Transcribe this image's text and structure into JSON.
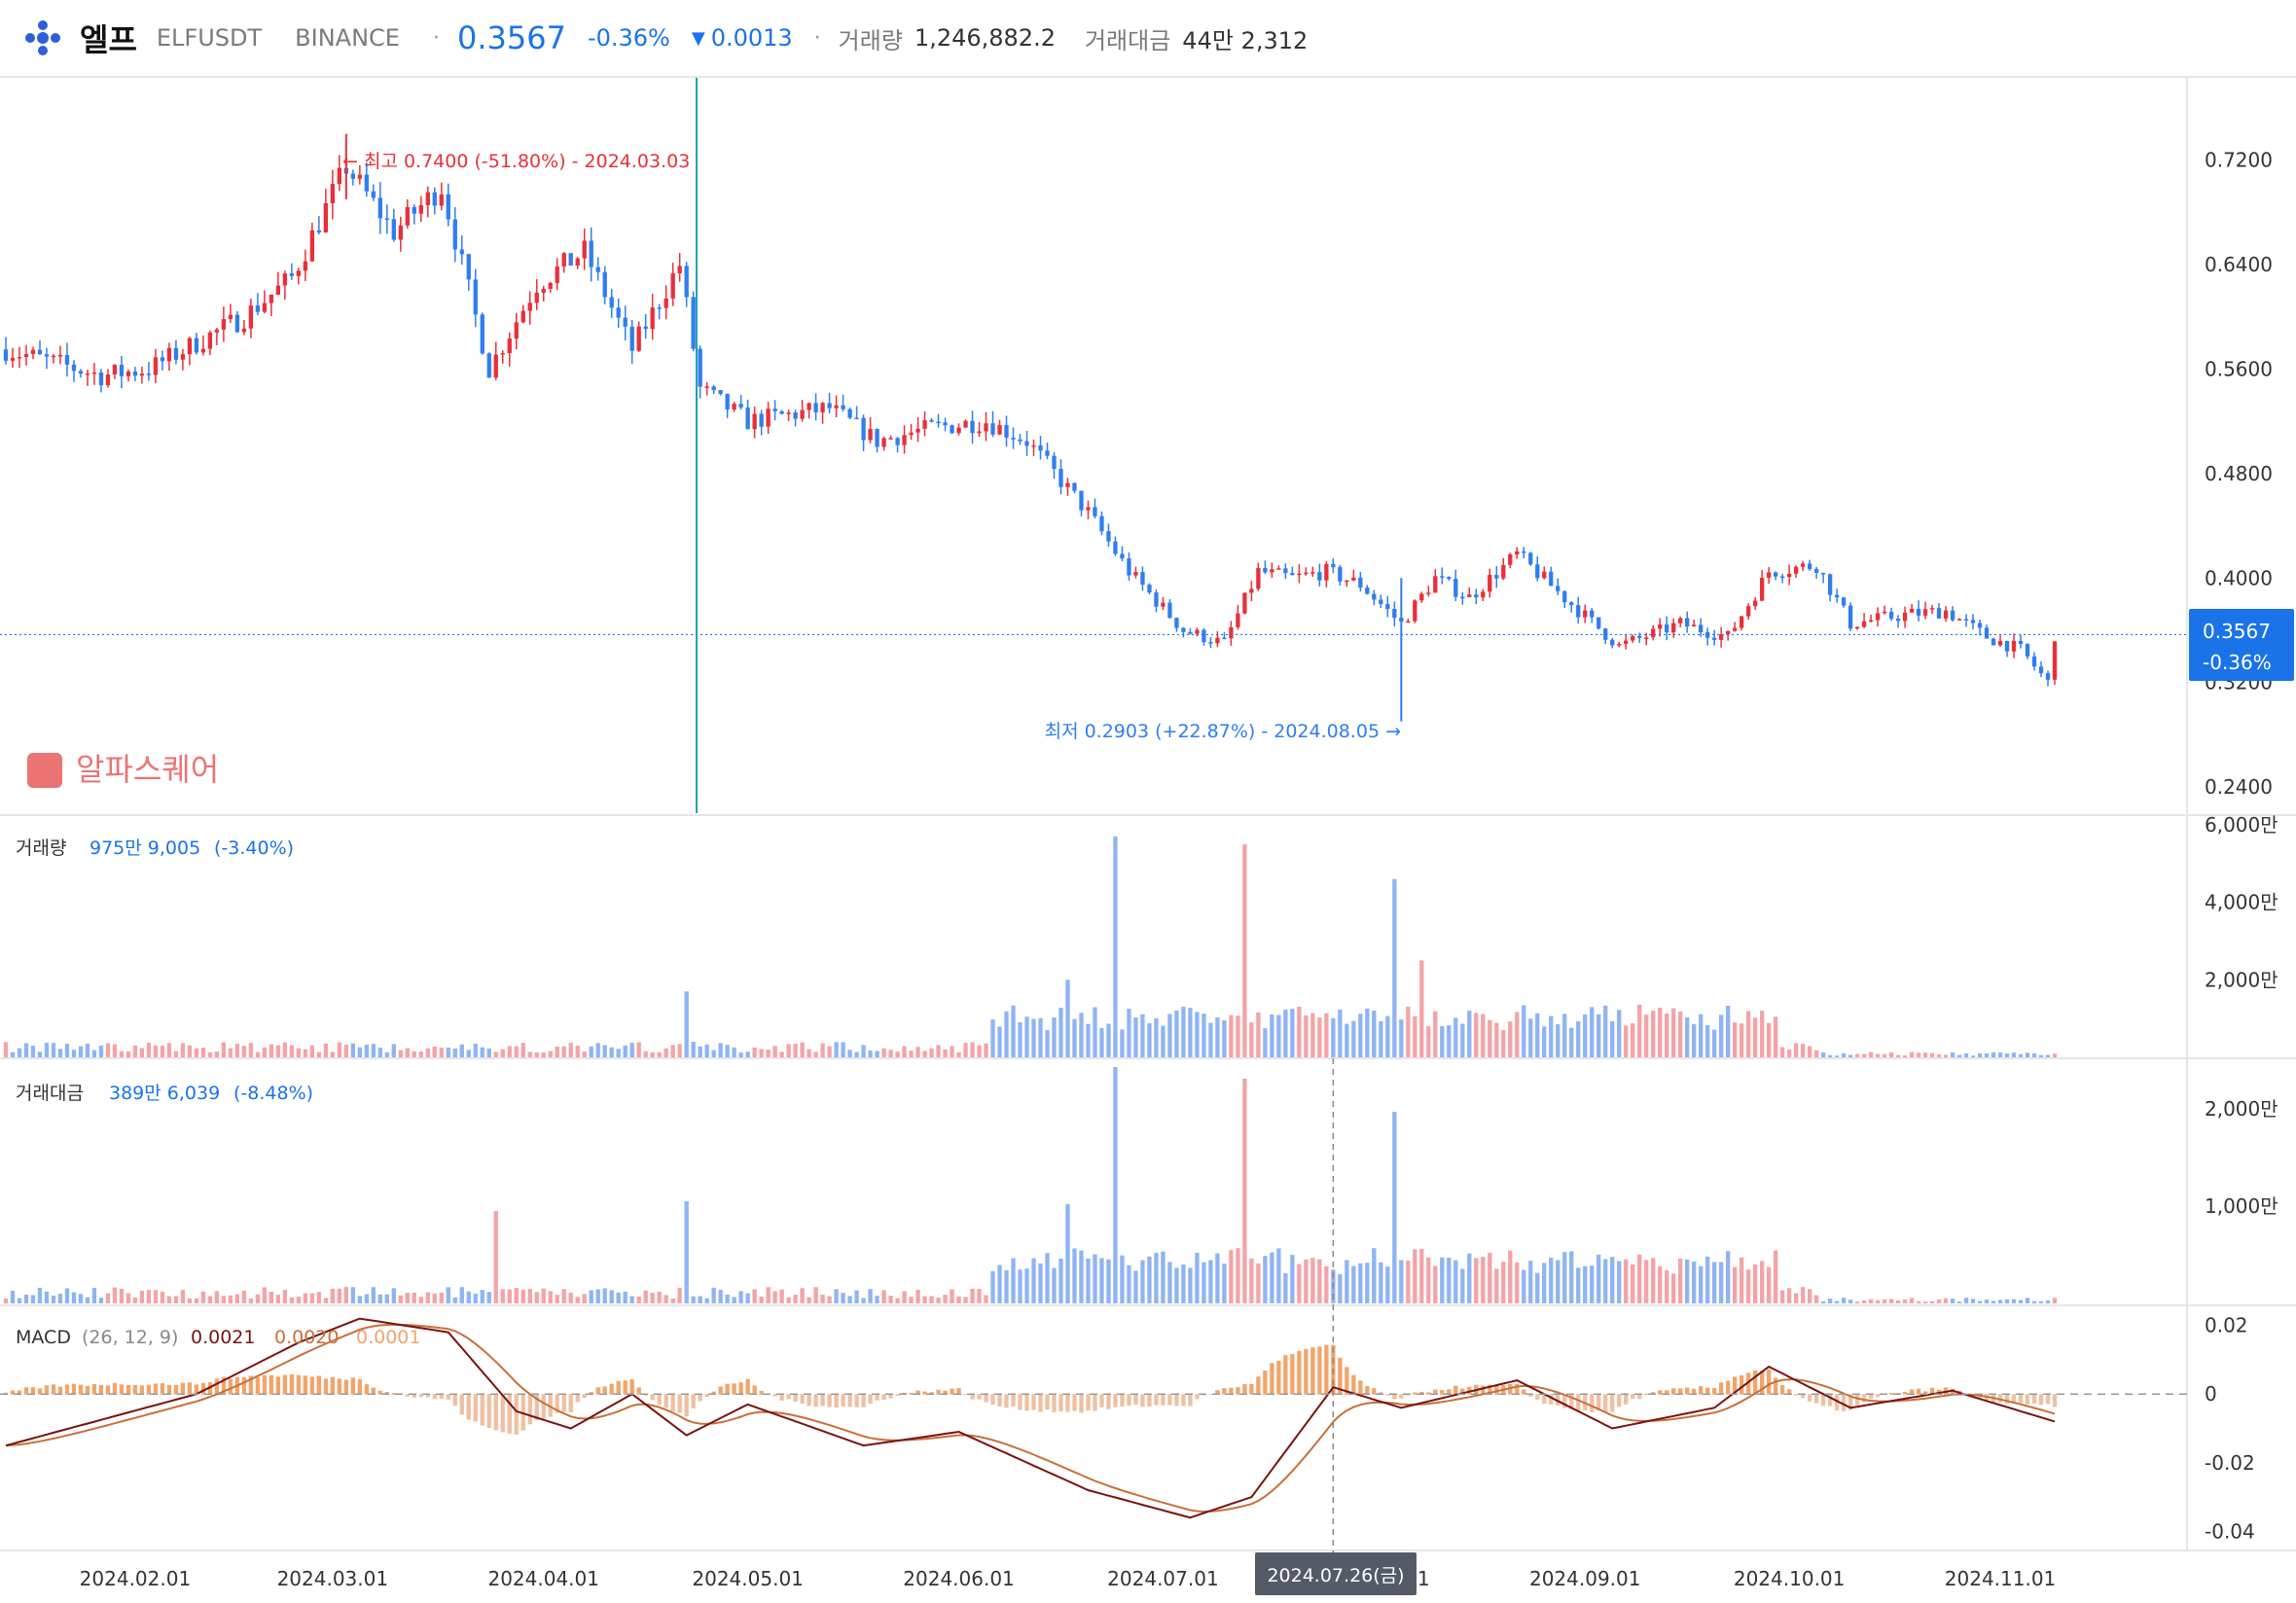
{
  "header": {
    "name": "엘프",
    "ticker": "ELFUSDT",
    "exchange": "BINANCE",
    "price": "0.3567",
    "change_pct": "-0.36%",
    "change_arrow": "▼",
    "change_abs": "0.0013",
    "volume_label": "거래량",
    "volume_value": "1,246,882.2",
    "amount_label": "거래대금",
    "amount_value": "44만 2,312"
  },
  "colors": {
    "up": "#e8303a",
    "down": "#2f7ef0",
    "vol_up": "#f4a3a6",
    "vol_down": "#8fb4f4",
    "accent": "#1a73e8",
    "macd_line": "#7a1212",
    "signal_line": "#c8703a",
    "hist_pos": "#f2a46a",
    "hist_neg": "#eec0a2",
    "watermark": "#e85b5b"
  },
  "price_panel": {
    "watermark": "알파스퀘어",
    "last_price_tag": "0.3567",
    "last_change_tag": "-0.36%",
    "high_annotation": "← 최고 0.7400 (-51.80%) - 2024.03.03",
    "low_annotation": "최저 0.2903 (+22.87%) - 2024.08.05 →",
    "yticks": [
      "0.7200",
      "0.6400",
      "0.5600",
      "0.4800",
      "0.4000",
      "0.3200",
      "0.2400"
    ]
  },
  "volume_panel": {
    "label": "거래량",
    "value": "975만 9,005",
    "change": "(-3.40%)",
    "yticks": [
      "6,000만",
      "4,000만",
      "2,000만"
    ]
  },
  "amount_panel": {
    "label": "거래대금",
    "value": "389만 6,039",
    "change": "(-8.48%)",
    "yticks": [
      "2,000만",
      "1,000만"
    ]
  },
  "macd_panel": {
    "label": "MACD",
    "params": "(26, 12, 9)",
    "macd_value": "0.0021",
    "signal_value": "0.0020",
    "hist_value": "0.0001",
    "yticks": [
      "0.02",
      "0",
      "-0.02",
      "-0.04"
    ]
  },
  "x_axis": {
    "ticks": [
      "2024.02.01",
      "2024.03.01",
      "2024.04.01",
      "2024.05.01",
      "2024.06.01",
      "2024.07.01",
      "2024.08.01",
      "2024.09.01",
      "2024.10.01",
      "2024.11.01"
    ],
    "crosshair_label": "2024.07.26(금)"
  },
  "chart_data": {
    "type": "candlestick",
    "interval": "1D",
    "x_range": [
      "2024-01-13",
      "2024-11-09"
    ],
    "price_ylim": [
      0.22,
      0.78
    ],
    "volume_ylim_10k": [
      0,
      6200
    ],
    "amount_ylim_10k": [
      0,
      2500
    ],
    "macd_ylim": [
      -0.045,
      0.025
    ],
    "price_keypoints": [
      {
        "date": "2024-01-13",
        "price": 0.575
      },
      {
        "date": "2024-01-20",
        "price": 0.565
      },
      {
        "date": "2024-01-27",
        "price": 0.555
      },
      {
        "date": "2024-02-03",
        "price": 0.56
      },
      {
        "date": "2024-02-10",
        "price": 0.58
      },
      {
        "date": "2024-02-17",
        "price": 0.6
      },
      {
        "date": "2024-02-24",
        "price": 0.63
      },
      {
        "date": "2024-03-03",
        "price": 0.715
      },
      {
        "date": "2024-03-10",
        "price": 0.665
      },
      {
        "date": "2024-03-17",
        "price": 0.7
      },
      {
        "date": "2024-03-24",
        "price": 0.56
      },
      {
        "date": "2024-03-31",
        "price": 0.625
      },
      {
        "date": "2024-04-07",
        "price": 0.65
      },
      {
        "date": "2024-04-14",
        "price": 0.575
      },
      {
        "date": "2024-04-21",
        "price": 0.64
      },
      {
        "date": "2024-04-24",
        "price": 0.545
      },
      {
        "date": "2024-05-01",
        "price": 0.52
      },
      {
        "date": "2024-05-07",
        "price": 0.525
      },
      {
        "date": "2024-05-13",
        "price": 0.53
      },
      {
        "date": "2024-05-20",
        "price": 0.505
      },
      {
        "date": "2024-05-28",
        "price": 0.515
      },
      {
        "date": "2024-06-05",
        "price": 0.52
      },
      {
        "date": "2024-06-11",
        "price": 0.505
      },
      {
        "date": "2024-06-20",
        "price": 0.45
      },
      {
        "date": "2024-06-26",
        "price": 0.405
      },
      {
        "date": "2024-07-04",
        "price": 0.36
      },
      {
        "date": "2024-07-10",
        "price": 0.35
      },
      {
        "date": "2024-07-15",
        "price": 0.405
      },
      {
        "date": "2024-07-20",
        "price": 0.4
      },
      {
        "date": "2024-07-25",
        "price": 0.405
      },
      {
        "date": "2024-07-30",
        "price": 0.395
      },
      {
        "date": "2024-08-05",
        "price": 0.365
      },
      {
        "date": "2024-08-10",
        "price": 0.4
      },
      {
        "date": "2024-08-15",
        "price": 0.385
      },
      {
        "date": "2024-08-22",
        "price": 0.418
      },
      {
        "date": "2024-08-30",
        "price": 0.38
      },
      {
        "date": "2024-09-06",
        "price": 0.348
      },
      {
        "date": "2024-09-15",
        "price": 0.365
      },
      {
        "date": "2024-09-22",
        "price": 0.355
      },
      {
        "date": "2024-09-28",
        "price": 0.405
      },
      {
        "date": "2024-10-05",
        "price": 0.41
      },
      {
        "date": "2024-10-10",
        "price": 0.365
      },
      {
        "date": "2024-10-18",
        "price": 0.372
      },
      {
        "date": "2024-10-24",
        "price": 0.375
      },
      {
        "date": "2024-10-30",
        "price": 0.355
      },
      {
        "date": "2024-11-04",
        "price": 0.345
      },
      {
        "date": "2024-11-08",
        "price": 0.32
      },
      {
        "date": "2024-11-09",
        "price": 0.3567
      }
    ],
    "volume_spikes_10k": [
      {
        "date": "2024-06-24",
        "value": 5700
      },
      {
        "date": "2024-07-13",
        "value": 5500
      },
      {
        "date": "2024-08-04",
        "value": 4600
      },
      {
        "date": "2024-08-08",
        "value": 2500
      },
      {
        "date": "2024-06-17",
        "value": 2000
      },
      {
        "date": "2024-04-22",
        "value": 1700
      }
    ],
    "amount_spikes_10k": [
      {
        "date": "2024-06-24",
        "value": 2430
      },
      {
        "date": "2024-07-13",
        "value": 2310
      },
      {
        "date": "2024-08-04",
        "value": 1970
      },
      {
        "date": "2024-06-17",
        "value": 1020
      },
      {
        "date": "2024-04-22",
        "value": 1050
      },
      {
        "date": "2024-03-25",
        "value": 950
      }
    ],
    "macd_keypoints": [
      {
        "date": "2024-01-13",
        "macd": -0.015
      },
      {
        "date": "2024-02-10",
        "macd": 0.0
      },
      {
        "date": "2024-02-25",
        "macd": 0.015
      },
      {
        "date": "2024-03-05",
        "macd": 0.022
      },
      {
        "date": "2024-03-18",
        "macd": 0.018
      },
      {
        "date": "2024-03-28",
        "macd": -0.005
      },
      {
        "date": "2024-04-05",
        "macd": -0.01
      },
      {
        "date": "2024-04-14",
        "macd": 0.0
      },
      {
        "date": "2024-04-22",
        "macd": -0.012
      },
      {
        "date": "2024-05-01",
        "macd": -0.003
      },
      {
        "date": "2024-05-18",
        "macd": -0.015
      },
      {
        "date": "2024-06-01",
        "macd": -0.011
      },
      {
        "date": "2024-06-20",
        "macd": -0.028
      },
      {
        "date": "2024-07-05",
        "macd": -0.036
      },
      {
        "date": "2024-07-14",
        "macd": -0.03
      },
      {
        "date": "2024-07-26",
        "macd": 0.002
      },
      {
        "date": "2024-08-05",
        "macd": -0.004
      },
      {
        "date": "2024-08-22",
        "macd": 0.004
      },
      {
        "date": "2024-09-05",
        "macd": -0.01
      },
      {
        "date": "2024-09-20",
        "macd": -0.004
      },
      {
        "date": "2024-09-28",
        "macd": 0.008
      },
      {
        "date": "2024-10-10",
        "macd": -0.004
      },
      {
        "date": "2024-10-25",
        "macd": 0.001
      },
      {
        "date": "2024-11-09",
        "macd": -0.008
      }
    ]
  }
}
